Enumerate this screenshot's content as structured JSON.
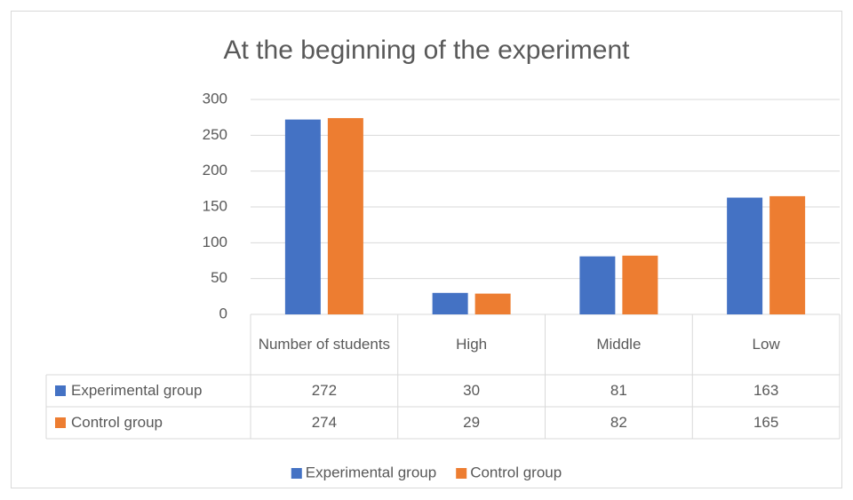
{
  "chart_data": {
    "type": "bar",
    "title": "At the beginning of the experiment",
    "categories": [
      "Number of students",
      "High",
      "Middle",
      "Low"
    ],
    "series": [
      {
        "name": "Experimental group",
        "color": "#4472c4",
        "values": [
          272,
          30,
          81,
          163
        ]
      },
      {
        "name": "Control group",
        "color": "#ed7d31",
        "values": [
          274,
          29,
          82,
          165
        ]
      }
    ],
    "ylim": [
      0,
      300
    ],
    "yticks": [
      0,
      50,
      100,
      150,
      200,
      250,
      300
    ],
    "grid": true,
    "data_table": true,
    "legend": "bottom"
  }
}
